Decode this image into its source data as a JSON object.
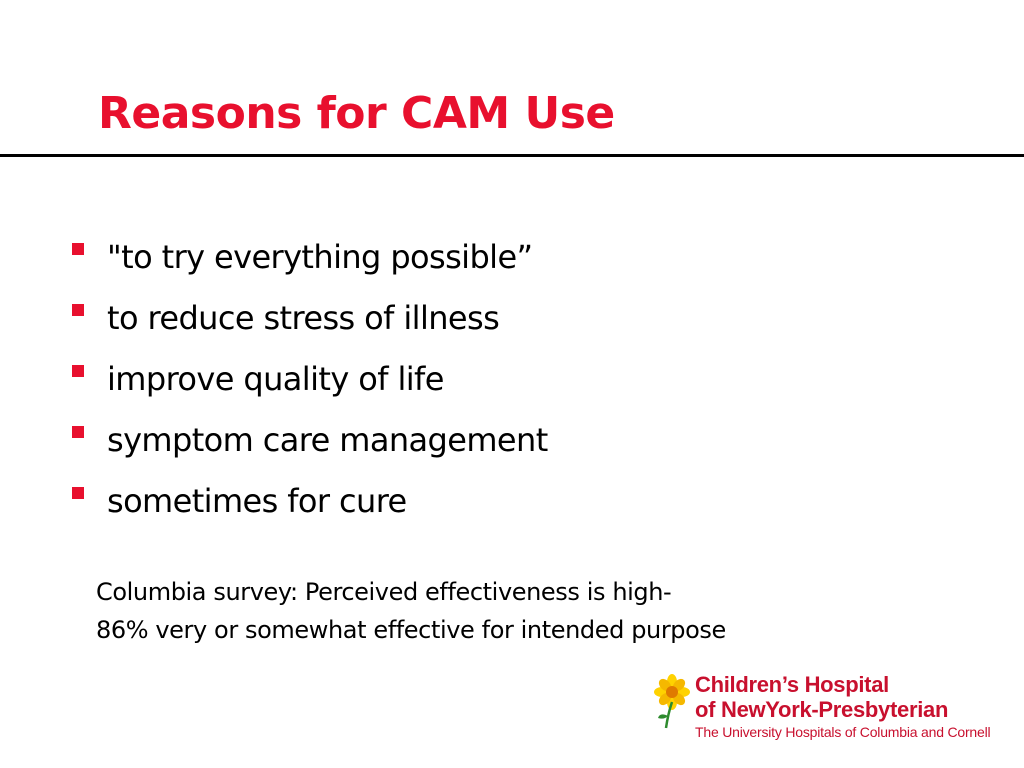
{
  "slide": {
    "title": "Reasons for CAM Use",
    "bullets": [
      "\"to try everything possible”",
      "to reduce stress of illness",
      "improve quality of life",
      "symptom care management",
      "sometimes for cure"
    ],
    "note": {
      "line1": "Columbia survey: Perceived effectiveness is high-",
      "line2": "86% very or somewhat effective for intended purpose"
    }
  },
  "logo": {
    "icon": "sunflower-icon",
    "line1": "Children’s Hospital",
    "line2": "of NewYork-Presbyterian",
    "line3": "The University Hospitals of Columbia and Cornell"
  },
  "colors": {
    "title": "#e8102e",
    "bullet": "#e8102e",
    "logo_text": "#c8102e",
    "logo_flower": "#ffd200",
    "rule": "#000000"
  }
}
